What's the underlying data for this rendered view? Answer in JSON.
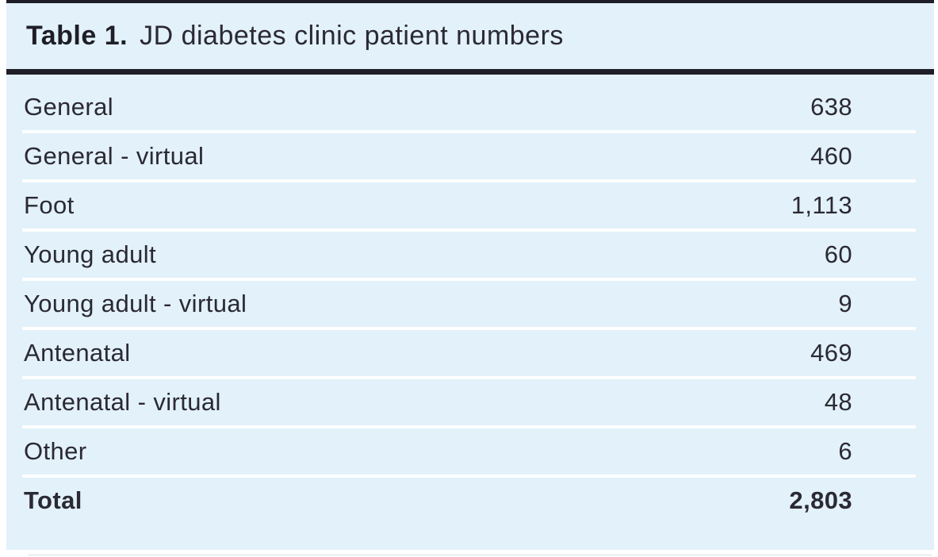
{
  "table": {
    "title_label": "Table 1.",
    "title_text": "JD diabetes clinic patient numbers",
    "rows": [
      {
        "label": "General",
        "value": "638"
      },
      {
        "label": "General - virtual",
        "value": "460"
      },
      {
        "label": "Foot",
        "value": "1,113"
      },
      {
        "label": "Young adult",
        "value": "60"
      },
      {
        "label": "Young adult - virtual",
        "value": "9"
      },
      {
        "label": "Antenatal",
        "value": "469"
      },
      {
        "label": "Antenatal - virtual",
        "value": "48"
      },
      {
        "label": "Other",
        "value": "6"
      }
    ],
    "total": {
      "label": "Total",
      "value": "2,803"
    }
  },
  "chart_data": {
    "type": "table",
    "title": "Table 1. JD diabetes clinic patient numbers",
    "categories": [
      "General",
      "General - virtual",
      "Foot",
      "Young adult",
      "Young adult - virtual",
      "Antenatal",
      "Antenatal - virtual",
      "Other"
    ],
    "values": [
      638,
      460,
      1113,
      60,
      9,
      469,
      48,
      6
    ],
    "total": 2803
  },
  "colors": {
    "panel_bg": "#e2f1fa",
    "dark": "#1f1e26",
    "text": "#2b2933",
    "separator": "#ffffff"
  }
}
